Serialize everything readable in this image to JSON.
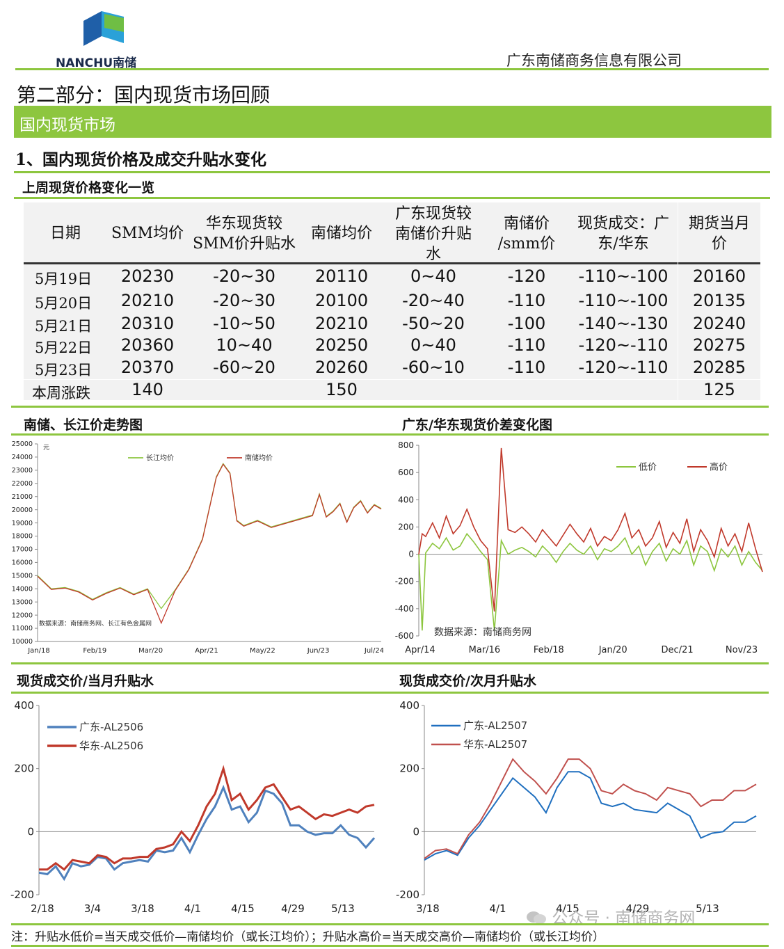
{
  "header": {
    "logo_text": "NANCHU南储",
    "company": "广东南储商务信息有限公司"
  },
  "part_title": "第二部分：国内现货市场回顾",
  "banner": "国内现货市场",
  "section1_title": "1、国内现货价格及成交升贴水变化",
  "table_title": "上周现货价格变化一览",
  "table": {
    "headers": [
      "日期",
      "SMM均价",
      "华东现货较SMM价升贴水",
      "南储均价",
      "广东现货较南储价升贴水",
      "南储价/smm价",
      "现货成交：广东/华东",
      "期货当月价"
    ],
    "rows": [
      [
        "5月19日",
        "20230",
        "-20~30",
        "20110",
        "0~40",
        "-120",
        "-110~-100",
        "20160"
      ],
      [
        "5月20日",
        "20210",
        "-20~30",
        "20100",
        "-20~40",
        "-110",
        "-110~-100",
        "20135"
      ],
      [
        "5月21日",
        "20310",
        "-10~50",
        "20210",
        "-50~20",
        "-100",
        "-140~-130",
        "20240"
      ],
      [
        "5月22日",
        "20360",
        "10~40",
        "20250",
        "0~40",
        "-110",
        "-120~-110",
        "20275"
      ],
      [
        "5月23日",
        "20370",
        "-60~20",
        "20260",
        "-60~10",
        "-110",
        "-120~-110",
        "20285"
      ]
    ],
    "summary": {
      "label": "本周涨跌",
      "smm": "140",
      "nanchu": "150",
      "futures": "125"
    }
  },
  "chart_titles": {
    "c1": "南储、长江价走势图",
    "c2": "广东/华东现货价差变化图",
    "c3": "现货成交价/当月升贴水",
    "c4": "现货成交价/次月升贴水"
  },
  "note": "注：升贴水低价=当天成交低价—南储均价（或长江均价）；升贴水高价=当天成交高价—南储均价（或长江均价）",
  "watermark": "公众号 · 南储商务网",
  "chart_data": [
    {
      "type": "line",
      "unit_label": "元",
      "source": "数据来源：南储商务网、长江有色金属网",
      "ylim": [
        10000,
        25000
      ],
      "yticks": [
        10000,
        11000,
        12000,
        13000,
        14000,
        15000,
        16000,
        17000,
        18000,
        19000,
        20000,
        21000,
        22000,
        23000,
        24000,
        25000
      ],
      "xticks": [
        "Jan/18",
        "Feb/19",
        "Mar/20",
        "Apr/21",
        "May/22",
        "Jun/23",
        "Jul/24"
      ],
      "x": [
        0,
        4,
        8,
        12,
        16,
        20,
        24,
        28,
        32,
        36,
        40,
        44,
        48,
        52,
        54,
        56,
        58,
        60,
        64,
        68,
        72,
        76,
        80,
        82,
        84,
        86,
        88,
        90,
        92,
        94,
        96,
        98,
        100
      ],
      "series": [
        {
          "name": "长江均价",
          "color": "#8dc63f",
          "values": [
            15000,
            14000,
            14100,
            13800,
            13200,
            13700,
            14100,
            13600,
            14000,
            12500,
            13900,
            15500,
            17800,
            22500,
            23500,
            22800,
            19200,
            18800,
            19200,
            18700,
            19000,
            19300,
            19600,
            21200,
            19500,
            19900,
            20500,
            19100,
            20200,
            20700,
            19800,
            20400,
            20100
          ]
        },
        {
          "name": "南储均价",
          "color": "#c0392b",
          "values": [
            14950,
            13950,
            14050,
            13750,
            13150,
            13650,
            14050,
            13550,
            13950,
            11400,
            13850,
            15450,
            17750,
            22450,
            23450,
            22750,
            19150,
            18750,
            19150,
            18650,
            18950,
            19250,
            19550,
            21150,
            19450,
            19850,
            20450,
            19050,
            20150,
            20650,
            19750,
            20350,
            20050
          ]
        }
      ]
    },
    {
      "type": "line",
      "source": "数据来源：南储商务网",
      "ylim": [
        -600,
        800
      ],
      "yticks": [
        -600,
        -400,
        -200,
        0,
        200,
        400,
        600,
        800
      ],
      "xticks": [
        "Apr/14",
        "Mar/16",
        "Feb/18",
        "Jan/20",
        "Dec/21",
        "Nov/23"
      ],
      "x": [
        0,
        1,
        2,
        4,
        6,
        8,
        10,
        12,
        14,
        16,
        18,
        20,
        22,
        24,
        26,
        28,
        30,
        32,
        34,
        36,
        38,
        40,
        42,
        44,
        46,
        48,
        50,
        52,
        54,
        56,
        58,
        60,
        62,
        64,
        66,
        68,
        70,
        72,
        74,
        76,
        78,
        80,
        82,
        84,
        86,
        88,
        90,
        92,
        94,
        96,
        98,
        100
      ],
      "series": [
        {
          "name": "低价",
          "color": "#8dc63f",
          "values": [
            0,
            -560,
            10,
            80,
            40,
            120,
            30,
            60,
            150,
            90,
            20,
            -40,
            -560,
            100,
            0,
            30,
            50,
            20,
            -20,
            60,
            10,
            -60,
            20,
            80,
            30,
            0,
            60,
            -40,
            40,
            20,
            60,
            120,
            0,
            60,
            -80,
            20,
            80,
            -50,
            40,
            0,
            100,
            -80,
            60,
            20,
            -120,
            40,
            -20,
            60,
            -80,
            20,
            -60,
            -120
          ]
        },
        {
          "name": "高价",
          "color": "#c0392b",
          "values": [
            0,
            150,
            130,
            230,
            120,
            280,
            150,
            210,
            330,
            200,
            100,
            40,
            -420,
            780,
            180,
            160,
            200,
            150,
            90,
            180,
            120,
            60,
            140,
            220,
            150,
            90,
            190,
            60,
            130,
            100,
            180,
            300,
            120,
            180,
            60,
            120,
            240,
            50,
            160,
            80,
            260,
            20,
            180,
            100,
            -20,
            190,
            60,
            150,
            20,
            230,
            40,
            -130
          ]
        }
      ]
    },
    {
      "type": "line",
      "ylim": [
        -200,
        400
      ],
      "yticks": [
        -200,
        0,
        200,
        400
      ],
      "xticks": [
        "2/18",
        "3/4",
        "3/18",
        "4/1",
        "4/15",
        "4/29",
        "5/13"
      ],
      "x": [
        0,
        1,
        2,
        3,
        4,
        5,
        6,
        7,
        8,
        9,
        10,
        11,
        12,
        13,
        14,
        15,
        16,
        17,
        18,
        19,
        20,
        21,
        22,
        23,
        24,
        25,
        26,
        27,
        28,
        29,
        30,
        31,
        32,
        33,
        34,
        35,
        36,
        37,
        38,
        39,
        40
      ],
      "series": [
        {
          "name": "广东-AL2506",
          "color": "#4f81bd",
          "values": [
            -130,
            -135,
            -110,
            -150,
            -100,
            -110,
            -105,
            -80,
            -85,
            -120,
            -100,
            -95,
            -90,
            -95,
            -60,
            -65,
            -60,
            -20,
            -65,
            -10,
            40,
            80,
            140,
            70,
            80,
            30,
            60,
            130,
            120,
            90,
            20,
            20,
            0,
            -10,
            -5,
            -5,
            20,
            -10,
            -20,
            -50,
            -20
          ]
        },
        {
          "name": "华东-AL2506",
          "color": "#c0392b",
          "values": [
            -120,
            -120,
            -100,
            -120,
            -90,
            -95,
            -100,
            -75,
            -80,
            -100,
            -85,
            -85,
            -80,
            -80,
            -55,
            -50,
            -40,
            0,
            -30,
            20,
            80,
            120,
            200,
            100,
            120,
            70,
            100,
            140,
            150,
            110,
            70,
            80,
            60,
            40,
            55,
            50,
            60,
            70,
            60,
            80,
            85
          ]
        }
      ]
    },
    {
      "type": "line",
      "ylim": [
        -200,
        400
      ],
      "yticks": [
        -200,
        0,
        200,
        400
      ],
      "xticks": [
        "3/18",
        "4/1",
        "4/15",
        "4/29",
        "5/13"
      ],
      "x": [
        0,
        1,
        2,
        3,
        4,
        5,
        6,
        7,
        8,
        9,
        10,
        11,
        12,
        13,
        14,
        15,
        16,
        17,
        18,
        19,
        20,
        21,
        22,
        23,
        24,
        25,
        26,
        27,
        28,
        29,
        30
      ],
      "series": [
        {
          "name": "广东-AL2507",
          "color": "#1f6fbf",
          "values": [
            -90,
            -70,
            -60,
            -75,
            -20,
            20,
            70,
            120,
            170,
            140,
            110,
            60,
            140,
            190,
            190,
            170,
            90,
            80,
            90,
            70,
            65,
            60,
            90,
            70,
            50,
            -20,
            -5,
            0,
            30,
            30,
            50
          ]
        },
        {
          "name": "华东-AL2507",
          "color": "#c0504d",
          "values": [
            -85,
            -60,
            -55,
            -70,
            -10,
            30,
            90,
            160,
            230,
            190,
            160,
            120,
            170,
            230,
            230,
            200,
            130,
            120,
            150,
            130,
            120,
            100,
            140,
            130,
            120,
            80,
            100,
            100,
            130,
            130,
            150
          ]
        }
      ]
    }
  ]
}
